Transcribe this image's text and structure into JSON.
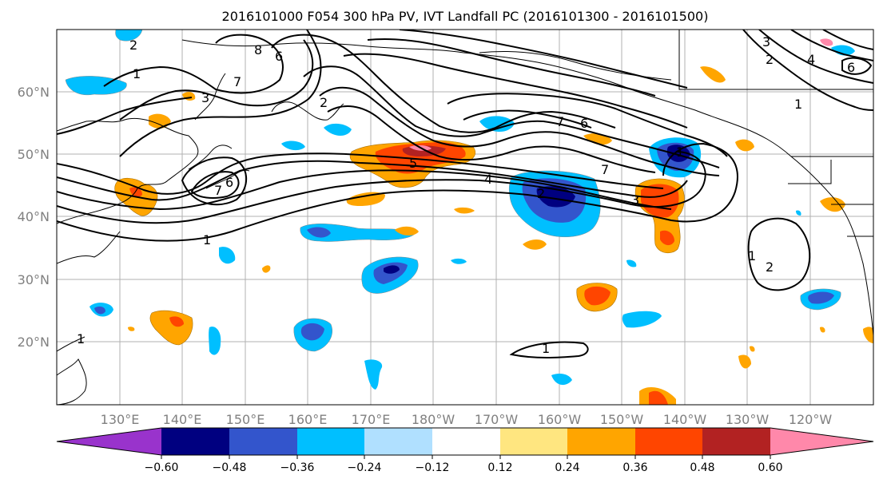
{
  "title": "2016101000 F054 300 hPa PV, IVT Landfall PC (2016101300 - 2016101500)",
  "lat_labels": [
    "60°N",
    "50°N",
    "40°N",
    "30°N",
    "20°N"
  ],
  "lon_labels": [
    "130°E",
    "140°E",
    "150°E",
    "160°E",
    "170°E",
    "180°W",
    "170°W",
    "160°W",
    "150°W",
    "140°W",
    "130°W",
    "120°W"
  ],
  "colorbar": {
    "colors": [
      "#9933cc",
      "#000080",
      "#3355cc",
      "#00bfff",
      "#b0e0ff",
      "#ffffff",
      "#ffe680",
      "#ffa500",
      "#ff4500",
      "#b22222",
      "#ff88aa"
    ],
    "tick_labels": [
      "−0.60",
      "−0.48",
      "−0.36",
      "−0.24",
      "−0.12",
      "0.12",
      "0.24",
      "0.36",
      "0.48",
      "0.60"
    ]
  },
  "contour_labels": [
    "2",
    "8",
    "6",
    "7",
    "1",
    "3",
    "2",
    "1",
    "5",
    "6",
    "7",
    "4",
    "2",
    "7",
    "3",
    "1",
    "1",
    "2",
    "1",
    "7",
    "6",
    "3",
    "2",
    "4",
    "6",
    "1",
    "1"
  ]
}
